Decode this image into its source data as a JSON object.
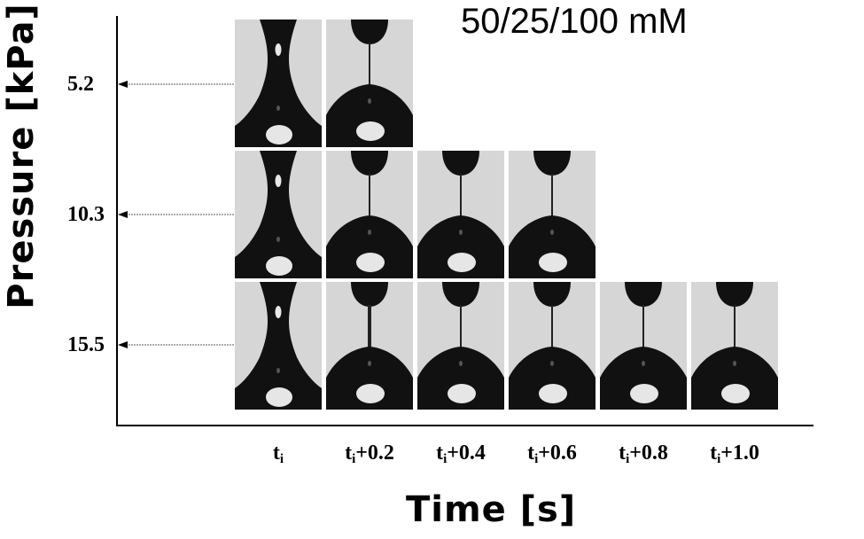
{
  "title": "50/25/100 mM",
  "y_axis": {
    "label": "Pressure [kPa]",
    "ticks": [
      "5.2",
      "10.3",
      "15.5"
    ]
  },
  "x_axis": {
    "label": "Time [s]",
    "ticks": [
      {
        "base": "t",
        "sub": "i",
        "suffix": ""
      },
      {
        "base": "t",
        "sub": "i",
        "suffix": "+0.2"
      },
      {
        "base": "t",
        "sub": "i",
        "suffix": "+0.4"
      },
      {
        "base": "t",
        "sub": "i",
        "suffix": "+0.6"
      },
      {
        "base": "t",
        "sub": "i",
        "suffix": "+0.8"
      },
      {
        "base": "t",
        "sub": "i",
        "suffix": "+1.0"
      }
    ]
  },
  "frames": {
    "5.2": [
      "neck",
      "thread"
    ],
    "10.3": [
      "neck",
      "thread",
      "thread",
      "thread"
    ],
    "15.5": [
      "neck",
      "thread-thick",
      "thread",
      "thread",
      "thread",
      "thread"
    ]
  }
}
